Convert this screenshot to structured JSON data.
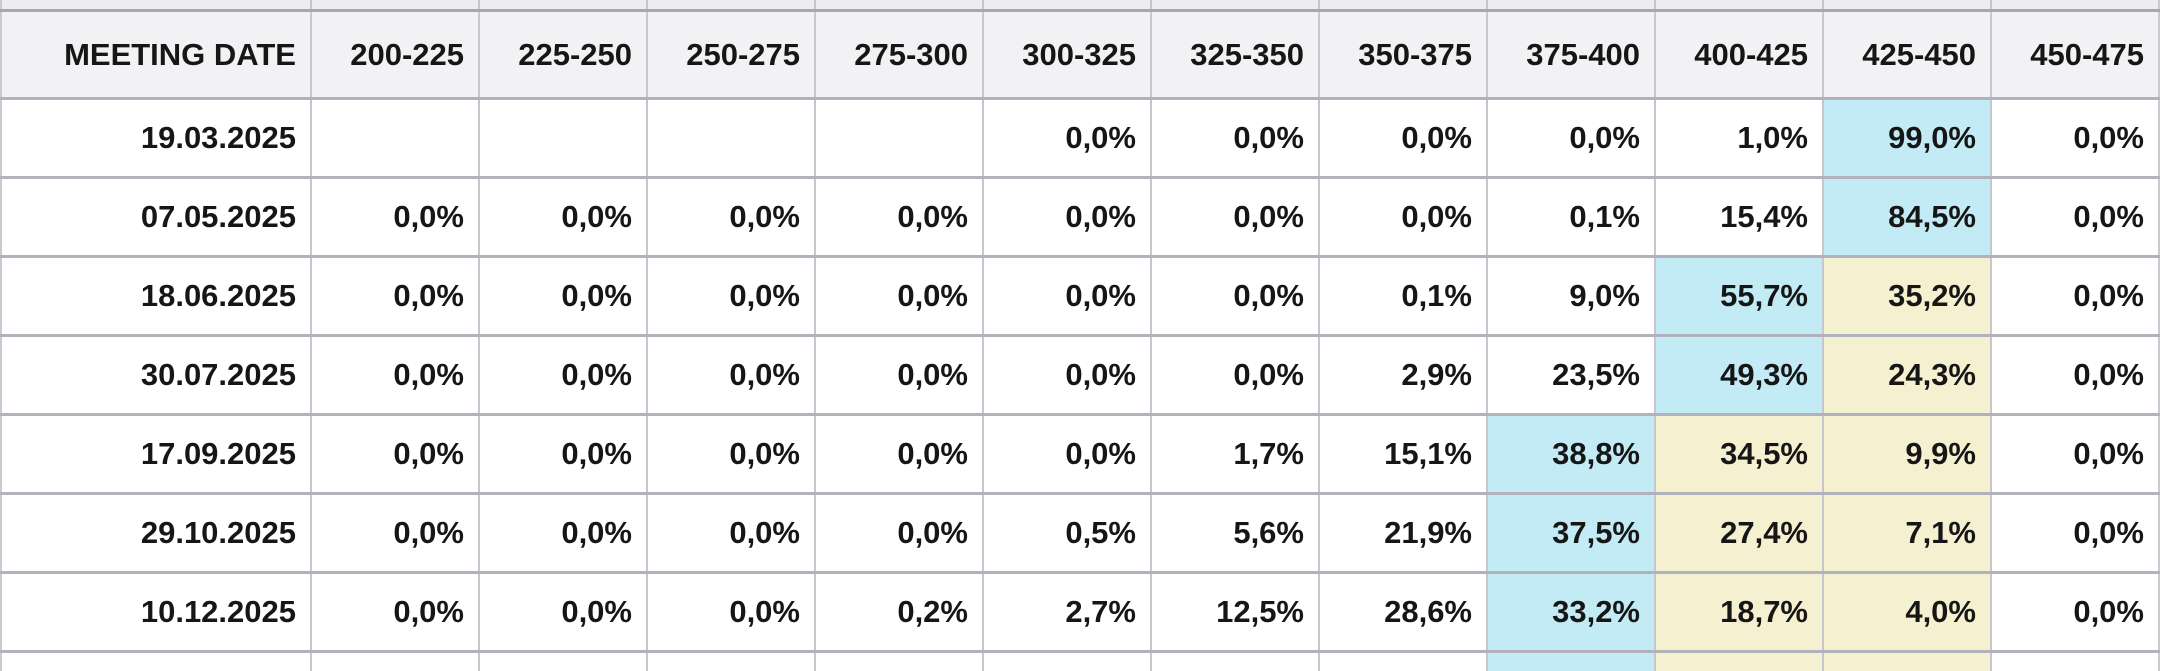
{
  "colors": {
    "highlight_peak_cyan": "#c2ebf5",
    "highlight_secondary_yellow": "#f5f1d0",
    "header_background": "#f2f2f5",
    "grid_line": "#b2b2bc",
    "text": "#161616"
  },
  "chart_data": {
    "type": "table",
    "columns": [
      "MEETING DATE",
      "200-225",
      "225-250",
      "250-275",
      "275-300",
      "300-325",
      "325-350",
      "350-375",
      "375-400",
      "400-425",
      "425-450",
      "450-475"
    ],
    "rows": [
      {
        "date": "19.03.2025",
        "values": [
          "",
          "",
          "",
          "",
          "0,0%",
          "0,0%",
          "0,0%",
          "0,0%",
          "1,0%",
          "99,0%",
          "0,0%"
        ],
        "highlights": [
          null,
          null,
          null,
          null,
          null,
          null,
          null,
          null,
          null,
          "cyan",
          null
        ]
      },
      {
        "date": "07.05.2025",
        "values": [
          "0,0%",
          "0,0%",
          "0,0%",
          "0,0%",
          "0,0%",
          "0,0%",
          "0,0%",
          "0,1%",
          "15,4%",
          "84,5%",
          "0,0%"
        ],
        "highlights": [
          null,
          null,
          null,
          null,
          null,
          null,
          null,
          null,
          null,
          "cyan",
          null
        ]
      },
      {
        "date": "18.06.2025",
        "values": [
          "0,0%",
          "0,0%",
          "0,0%",
          "0,0%",
          "0,0%",
          "0,0%",
          "0,1%",
          "9,0%",
          "55,7%",
          "35,2%",
          "0,0%"
        ],
        "highlights": [
          null,
          null,
          null,
          null,
          null,
          null,
          null,
          null,
          "cyan",
          "yellow",
          null
        ]
      },
      {
        "date": "30.07.2025",
        "values": [
          "0,0%",
          "0,0%",
          "0,0%",
          "0,0%",
          "0,0%",
          "0,0%",
          "2,9%",
          "23,5%",
          "49,3%",
          "24,3%",
          "0,0%"
        ],
        "highlights": [
          null,
          null,
          null,
          null,
          null,
          null,
          null,
          null,
          "cyan",
          "yellow",
          null
        ]
      },
      {
        "date": "17.09.2025",
        "values": [
          "0,0%",
          "0,0%",
          "0,0%",
          "0,0%",
          "0,0%",
          "1,7%",
          "15,1%",
          "38,8%",
          "34,5%",
          "9,9%",
          "0,0%"
        ],
        "highlights": [
          null,
          null,
          null,
          null,
          null,
          null,
          null,
          "cyan",
          "yellow",
          "yellow",
          null
        ]
      },
      {
        "date": "29.10.2025",
        "values": [
          "0,0%",
          "0,0%",
          "0,0%",
          "0,0%",
          "0,5%",
          "5,6%",
          "21,9%",
          "37,5%",
          "27,4%",
          "7,1%",
          "0,0%"
        ],
        "highlights": [
          null,
          null,
          null,
          null,
          null,
          null,
          null,
          "cyan",
          "yellow",
          "yellow",
          null
        ]
      },
      {
        "date": "10.12.2025",
        "values": [
          "0,0%",
          "0,0%",
          "0,0%",
          "0,2%",
          "2,7%",
          "12,5%",
          "28,6%",
          "33,2%",
          "18,7%",
          "4,0%",
          "0,0%"
        ],
        "highlights": [
          null,
          null,
          null,
          null,
          null,
          null,
          null,
          "cyan",
          "yellow",
          "yellow",
          null
        ]
      }
    ],
    "partial_next_row_highlights": [
      null,
      null,
      null,
      null,
      null,
      null,
      null,
      "cyan",
      "yellow",
      "yellow",
      null
    ]
  }
}
